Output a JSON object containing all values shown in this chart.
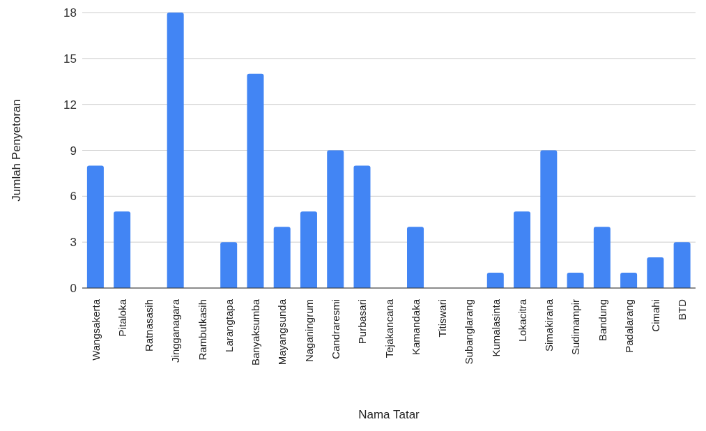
{
  "chart_data": {
    "type": "bar",
    "xlabel": "Nama Tatar",
    "ylabel": "Jumlah Penyetoran",
    "categories": [
      "Wangsakerta",
      "Pitaloka",
      "Ratnasasih",
      "Jingganagara",
      "Rambutkasih",
      "Larangtapa",
      "Banyaksumba",
      "Mayangsunda",
      "Naganingrum",
      "Candraresmi",
      "Purbasari",
      "Tejakancana",
      "Kamandaka",
      "Titiswari",
      "Subanglarang",
      "Kumalasinta",
      "Lokacitra",
      "Simakirana",
      "Sudimampir",
      "Bandung",
      "Padalarang",
      "Cimahi",
      "BTD"
    ],
    "values": [
      8,
      5,
      0,
      18,
      0,
      3,
      14,
      4,
      5,
      9,
      8,
      0,
      4,
      0,
      0,
      1,
      5,
      9,
      1,
      4,
      1,
      2,
      3
    ],
    "color": "#4285f4",
    "ylim": [
      0,
      18
    ],
    "yticks": [
      0,
      3,
      6,
      9,
      12,
      15,
      18
    ],
    "grid": "y"
  }
}
